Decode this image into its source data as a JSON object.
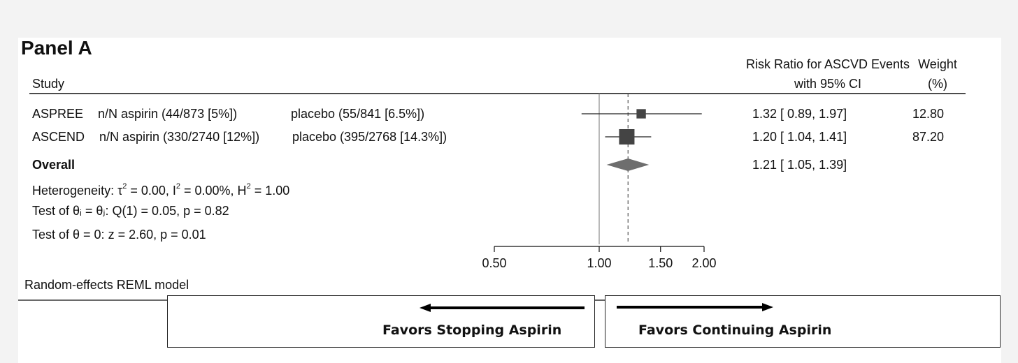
{
  "panel_title": "Panel A",
  "header": {
    "study": "Study",
    "effect_line1": "Risk Ratio for ASCVD Events",
    "effect_line2": "with 95% CI",
    "weight_line1": "Weight",
    "weight_line2": "(%)"
  },
  "studies": [
    {
      "name": "ASPREE",
      "aspirin": "n/N aspirin (44/873 [5%])",
      "placebo": "placebo (55/841 [6.5%])",
      "ci_text": "1.32 [ 0.89,  1.97]",
      "weight_text": "12.80"
    },
    {
      "name": "ASCEND",
      "aspirin": "n/N aspirin (330/2740 [12%])",
      "placebo": "placebo (395/2768 [14.3%])",
      "ci_text": "1.20 [ 1.04,  1.41]",
      "weight_text": "87.20"
    }
  ],
  "overall": {
    "label": "Overall",
    "ci_text": "1.21 [ 1.05,  1.39]"
  },
  "stats": {
    "het_a": "Heterogeneity: τ",
    "het_sup1": "2",
    "het_b": " = 0.00, I",
    "het_sup2": "2",
    "het_c": " = 0.00%, H",
    "het_sup3": "2",
    "het_d": " = 1.00",
    "test1": "Test of θᵢ = θⱼ: Q(1) = 0.05, p = 0.82",
    "test2": "Test of θ = 0: z = 2.60, p = 0.01"
  },
  "model_note": "Random-effects REML model",
  "favors": {
    "left": "Favors Stopping Aspirin",
    "right": "Favors Continuing Aspirin"
  },
  "chart_data": {
    "type": "forest",
    "x_scale": "log",
    "x_ticks": [
      0.5,
      1.0,
      1.5,
      2.0
    ],
    "x_tick_labels": [
      "0.50",
      "1.00",
      "1.50",
      "2.00"
    ],
    "null_line": 1.0,
    "studies": [
      {
        "name": "ASPREE",
        "rr": 1.32,
        "lo": 0.89,
        "hi": 1.97,
        "weight": 12.8
      },
      {
        "name": "ASCEND",
        "rr": 1.2,
        "lo": 1.04,
        "hi": 1.41,
        "weight": 87.2
      }
    ],
    "overall": {
      "rr": 1.21,
      "lo": 1.05,
      "hi": 1.39
    },
    "colors": {
      "marker": "#444444",
      "diamond": "#6e6e6e",
      "line": "#222222",
      "null_line": "#8a8a8a"
    }
  }
}
